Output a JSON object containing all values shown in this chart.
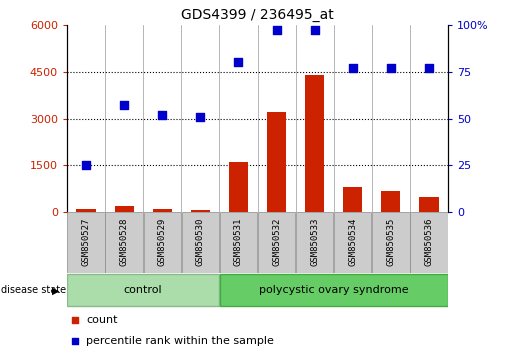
{
  "title": "GDS4399 / 236495_at",
  "samples": [
    "GSM850527",
    "GSM850528",
    "GSM850529",
    "GSM850530",
    "GSM850531",
    "GSM850532",
    "GSM850533",
    "GSM850534",
    "GSM850535",
    "GSM850536"
  ],
  "counts": [
    100,
    220,
    100,
    90,
    1600,
    3200,
    4400,
    800,
    700,
    500
  ],
  "percentiles": [
    25,
    57,
    52,
    51,
    80,
    97,
    97,
    77,
    77,
    77
  ],
  "bar_color": "#cc2200",
  "scatter_color": "#0000cc",
  "left_ylim": [
    0,
    6000
  ],
  "right_ylim": [
    0,
    100
  ],
  "left_yticks": [
    0,
    1500,
    3000,
    4500,
    6000
  ],
  "right_yticks": [
    0,
    25,
    50,
    75,
    100
  ],
  "right_yticklabels": [
    "0",
    "25",
    "50",
    "75",
    "100%"
  ],
  "group_labels": [
    "control",
    "polycystic ovary syndrome"
  ],
  "group_colors": [
    "#aaddaa",
    "#66cc66"
  ],
  "group_edge_colors": [
    "#88bb88",
    "#44aa44"
  ],
  "disease_state_label": "disease state",
  "legend_items": [
    "count",
    "percentile rank within the sample"
  ],
  "legend_colors": [
    "#cc2200",
    "#0000cc"
  ],
  "bg_color": "#ffffff",
  "tick_label_color_left": "#cc2200",
  "tick_label_color_right": "#0000cc",
  "bar_width": 0.5,
  "dotted_grid_vals": [
    1500,
    3000,
    4500
  ],
  "ctrl_samples": 4,
  "pcos_samples": 6
}
